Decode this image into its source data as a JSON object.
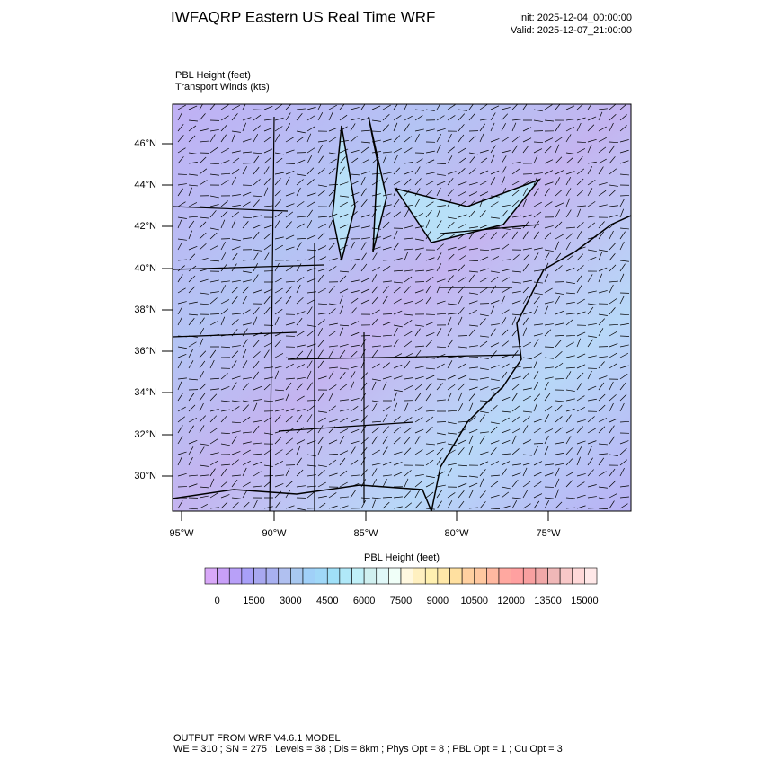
{
  "header": {
    "title": "IWFAQRP Eastern US Real Time WRF",
    "init": "Init: 2025-12-04_00:00:00",
    "valid": "Valid: 2025-12-07_21:00:00"
  },
  "map": {
    "field_label": "PBL Height   (feet)",
    "wind_label": "Transport Winds   (kts)",
    "lat_labels": [
      "46°N",
      "44°N",
      "42°N",
      "40°N",
      "38°N",
      "36°N",
      "34°N",
      "32°N",
      "30°N"
    ],
    "lon_labels": [
      "95°W",
      "90°W",
      "85°W",
      "80°W",
      "75°W"
    ]
  },
  "colorbar": {
    "title": "PBL Height  (feet)",
    "clim": [
      -500,
      15500
    ],
    "ticks": [
      0,
      1500,
      3000,
      4500,
      6000,
      7500,
      9000,
      10500,
      12000,
      13500,
      15000
    ],
    "colors": [
      "#d8a8f8",
      "#c8a0f8",
      "#b8a0f8",
      "#a8a0f8",
      "#a8a8f0",
      "#a8b0f0",
      "#b0c0f0",
      "#a8c8f0",
      "#a0d0f8",
      "#a0d8f8",
      "#a0e0f8",
      "#b0e8f8",
      "#c0f0f8",
      "#d0f0f0",
      "#e0f8f8",
      "#f0fff8",
      "#fff8e0",
      "#fff0c0",
      "#fff0b0",
      "#ffe8a8",
      "#ffe0a0",
      "#ffd0a0",
      "#ffc8a0",
      "#ffb8a0",
      "#ffa8a0",
      "#ffa0a0",
      "#f8a0a0",
      "#f0a8a8",
      "#f0b8b8",
      "#f8c8c8",
      "#ffd8d8",
      "#ffe8e8"
    ]
  },
  "footer": {
    "line1": "OUTPUT FROM WRF V4.6.1 MODEL",
    "line2": "WE = 310 ; SN = 275 ; Levels = 38 ; Dis = 8km ; Phys Opt = 8 ; PBL Opt = 1 ; Cu Opt = 3"
  }
}
